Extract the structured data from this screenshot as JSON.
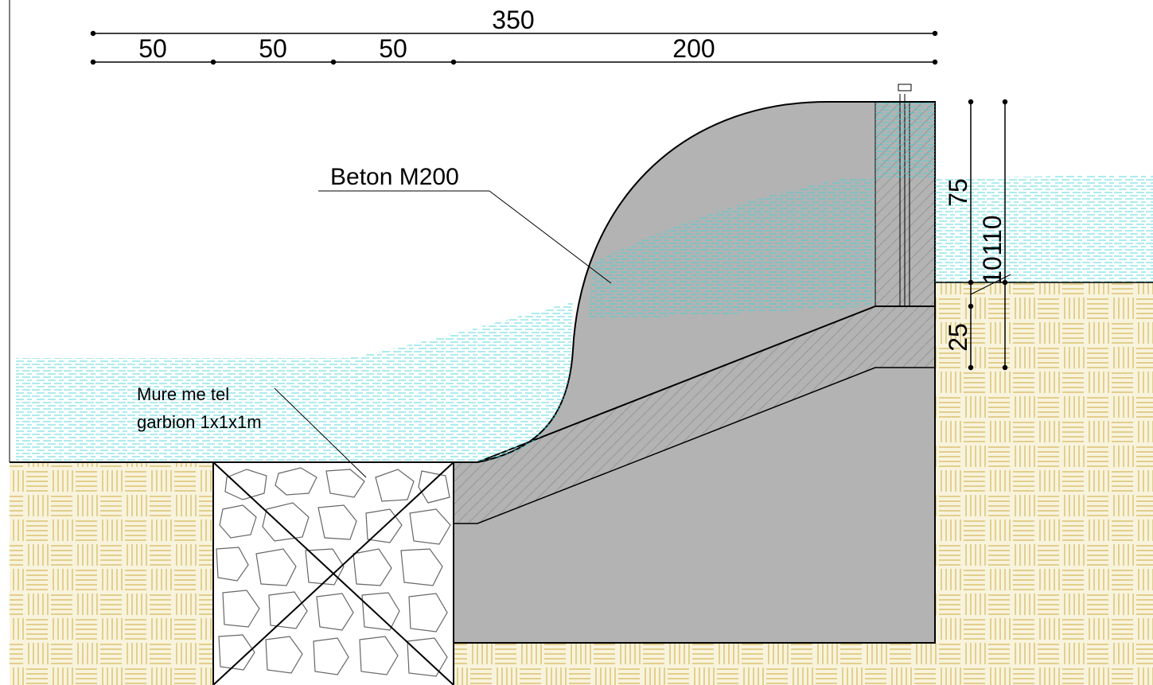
{
  "title": "",
  "annotations": {
    "concrete_label": "Beton M200",
    "gabion_label_line1": "Mure me tel",
    "gabion_label_line2": "garbion 1x1x1m"
  },
  "dimensions": {
    "top_total": "350",
    "top_segments": [
      "50",
      "50",
      "50",
      "200"
    ],
    "right_dim_75": "75",
    "right_dim_110": "110",
    "right_dim_10": "10",
    "right_dim_25": "25"
  },
  "colors": {
    "concrete": "#b3b3b3",
    "soil": "#f8f3dc",
    "soil_hatch": "#d4b95c",
    "water": "#3fd0d6",
    "outline": "#000000"
  }
}
